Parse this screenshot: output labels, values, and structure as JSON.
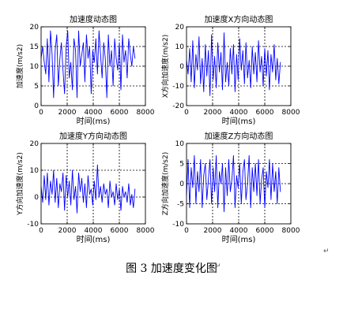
{
  "figure": {
    "caption": "图 3  加速度变化图",
    "pilcrow": "↵"
  },
  "colors": {
    "line": "#0000ff",
    "axis": "#000000",
    "grid": "#000000"
  },
  "chart_data": [
    {
      "type": "line",
      "title": "加速度动态图",
      "xlabel": "时间(ms)",
      "ylabel": "加速度(m/s2)",
      "xlim": [
        0,
        8000
      ],
      "ylim": [
        0,
        20
      ],
      "xticks": [
        0,
        2000,
        4000,
        6000,
        8000
      ],
      "yticks": [
        0,
        5,
        10,
        15,
        20
      ],
      "grid": true,
      "series": [
        {
          "x": [
            0,
            120,
            240,
            360,
            480,
            600,
            720,
            840,
            960,
            1080,
            1200,
            1320,
            1440,
            1560,
            1680,
            1800,
            1920,
            2040,
            2160,
            2280,
            2400,
            2520,
            2640,
            2760,
            2880,
            3000,
            3120,
            3240,
            3360,
            3480,
            3600,
            3720,
            3840,
            3960,
            4080,
            4200,
            4320,
            4440,
            4560,
            4680,
            4800,
            4920,
            5040,
            5160,
            5280,
            5400,
            5520,
            5640,
            5760,
            5880,
            6000,
            6120,
            6240,
            6360,
            6480,
            6600,
            6720,
            6840,
            6960,
            7080,
            7200
          ],
          "values": [
            12,
            15,
            11,
            8,
            17,
            6,
            19,
            13,
            2,
            14,
            18,
            5,
            12,
            16,
            9,
            3,
            15,
            19,
            7,
            11,
            4,
            17,
            14,
            2,
            19,
            10,
            13,
            16,
            6,
            18,
            12,
            15,
            3,
            14,
            11,
            17,
            8,
            19,
            13,
            7,
            16,
            12,
            2,
            18,
            10,
            14,
            5,
            17,
            12,
            9,
            16,
            4,
            18,
            11,
            14,
            7,
            17,
            13,
            10,
            15,
            12
          ]
        }
      ]
    },
    {
      "type": "line",
      "title": "加速度X方向动态图",
      "xlabel": "时间(ms)",
      "ylabel": "X方向加速度(m/s2)",
      "xlim": [
        0,
        8000
      ],
      "ylim": [
        -20,
        20
      ],
      "xticks": [
        0,
        2000,
        4000,
        6000,
        8000
      ],
      "yticks": [
        -20,
        -10,
        0,
        10,
        20
      ],
      "grid": true,
      "series": [
        {
          "x": [
            0,
            120,
            240,
            360,
            480,
            600,
            720,
            840,
            960,
            1080,
            1200,
            1320,
            1440,
            1560,
            1680,
            1800,
            1920,
            2040,
            2160,
            2280,
            2400,
            2520,
            2640,
            2760,
            2880,
            3000,
            3120,
            3240,
            3360,
            3480,
            3600,
            3720,
            3840,
            3960,
            4080,
            4200,
            4320,
            4440,
            4560,
            4680,
            4800,
            4920,
            5040,
            5160,
            5280,
            5400,
            5520,
            5640,
            5760,
            5880,
            6000,
            6120,
            6240,
            6360,
            6480,
            6600,
            6720,
            6840,
            6960,
            7080,
            7200
          ],
          "values": [
            3,
            -4,
            9,
            -8,
            13,
            -11,
            6,
            -2,
            15,
            -9,
            4,
            -13,
            11,
            -5,
            8,
            -15,
            16,
            -7,
            5,
            -11,
            12,
            -3,
            7,
            -12,
            17,
            -8,
            2,
            -10,
            9,
            -4,
            11,
            -13,
            6,
            -7,
            14,
            -2,
            8,
            -9,
            12,
            -6,
            3,
            -11,
            10,
            -4,
            7,
            -8,
            13,
            -3,
            5,
            -10,
            9,
            -5,
            8,
            -12,
            6,
            -3,
            11,
            -7,
            4,
            -9,
            2
          ]
        }
      ]
    },
    {
      "type": "line",
      "title": "加速度Y方向动态图",
      "xlabel": "时间(ms)",
      "ylabel": "Y方向加速度(m/s2)",
      "xlim": [
        0,
        8000
      ],
      "ylim": [
        -10,
        20
      ],
      "xticks": [
        0,
        2000,
        4000,
        6000,
        8000
      ],
      "yticks": [
        -10,
        0,
        10,
        20
      ],
      "grid": true,
      "series": [
        {
          "x": [
            0,
            120,
            240,
            360,
            480,
            600,
            720,
            840,
            960,
            1080,
            1200,
            1320,
            1440,
            1560,
            1680,
            1800,
            1920,
            2040,
            2160,
            2280,
            2400,
            2520,
            2640,
            2760,
            2880,
            3000,
            3120,
            3240,
            3360,
            3480,
            3600,
            3720,
            3840,
            3960,
            4080,
            4200,
            4320,
            4440,
            4560,
            4680,
            4800,
            4920,
            5040,
            5160,
            5280,
            5400,
            5520,
            5640,
            5760,
            5880,
            6000,
            6120,
            6240,
            6360,
            6480,
            6600,
            6720,
            6840,
            6960,
            7080,
            7200
          ],
          "values": [
            4,
            -2,
            8,
            -1,
            9,
            -3,
            6,
            1,
            10,
            -2,
            7,
            -4,
            5,
            2,
            9,
            -5,
            8,
            0,
            6,
            -3,
            10,
            -1,
            4,
            -6,
            9,
            2,
            7,
            -2,
            5,
            -4,
            8,
            1,
            3,
            -3,
            6,
            -1,
            12,
            0,
            4,
            -2,
            5,
            1,
            3,
            -4,
            6,
            0,
            2,
            -3,
            5,
            -1,
            3,
            -5,
            4,
            0,
            2,
            -2,
            5,
            -3,
            1,
            -4,
            3
          ]
        }
      ]
    },
    {
      "type": "line",
      "title": "加速度Z方向动态图",
      "xlabel": "时间(ms)",
      "ylabel": "Z方向加速度(m/s2)",
      "xlim": [
        0,
        8000
      ],
      "ylim": [
        -10,
        10
      ],
      "xticks": [
        0,
        2000,
        4000,
        6000,
        8000
      ],
      "yticks": [
        -10,
        -5,
        0,
        5,
        10
      ],
      "grid": true,
      "series": [
        {
          "x": [
            0,
            120,
            240,
            360,
            480,
            600,
            720,
            840,
            960,
            1080,
            1200,
            1320,
            1440,
            1560,
            1680,
            1800,
            1920,
            2040,
            2160,
            2280,
            2400,
            2520,
            2640,
            2760,
            2880,
            3000,
            3120,
            3240,
            3360,
            3480,
            3600,
            3720,
            3840,
            3960,
            4080,
            4200,
            4320,
            4440,
            4560,
            4680,
            4800,
            4920,
            5040,
            5160,
            5280,
            5400,
            5520,
            5640,
            5760,
            5880,
            6000,
            6120,
            6240,
            6360,
            6480,
            6600,
            6720,
            6840,
            6960,
            7080,
            7200
          ],
          "values": [
            -3,
            6,
            -6,
            4,
            -1,
            7,
            -5,
            3,
            -2,
            6,
            -6,
            2,
            5,
            -4,
            1,
            6,
            -5,
            4,
            -2,
            7,
            -6,
            3,
            0,
            5,
            -7,
            4,
            -3,
            6,
            -2,
            1,
            7,
            -6,
            2,
            -1,
            5,
            -5,
            3,
            6,
            -4,
            0,
            7,
            -6,
            4,
            -2,
            5,
            -3,
            6,
            -5,
            1,
            4,
            -6,
            3,
            -1,
            6,
            -4,
            5,
            -2,
            3,
            -5,
            4,
            -2
          ]
        }
      ]
    }
  ]
}
